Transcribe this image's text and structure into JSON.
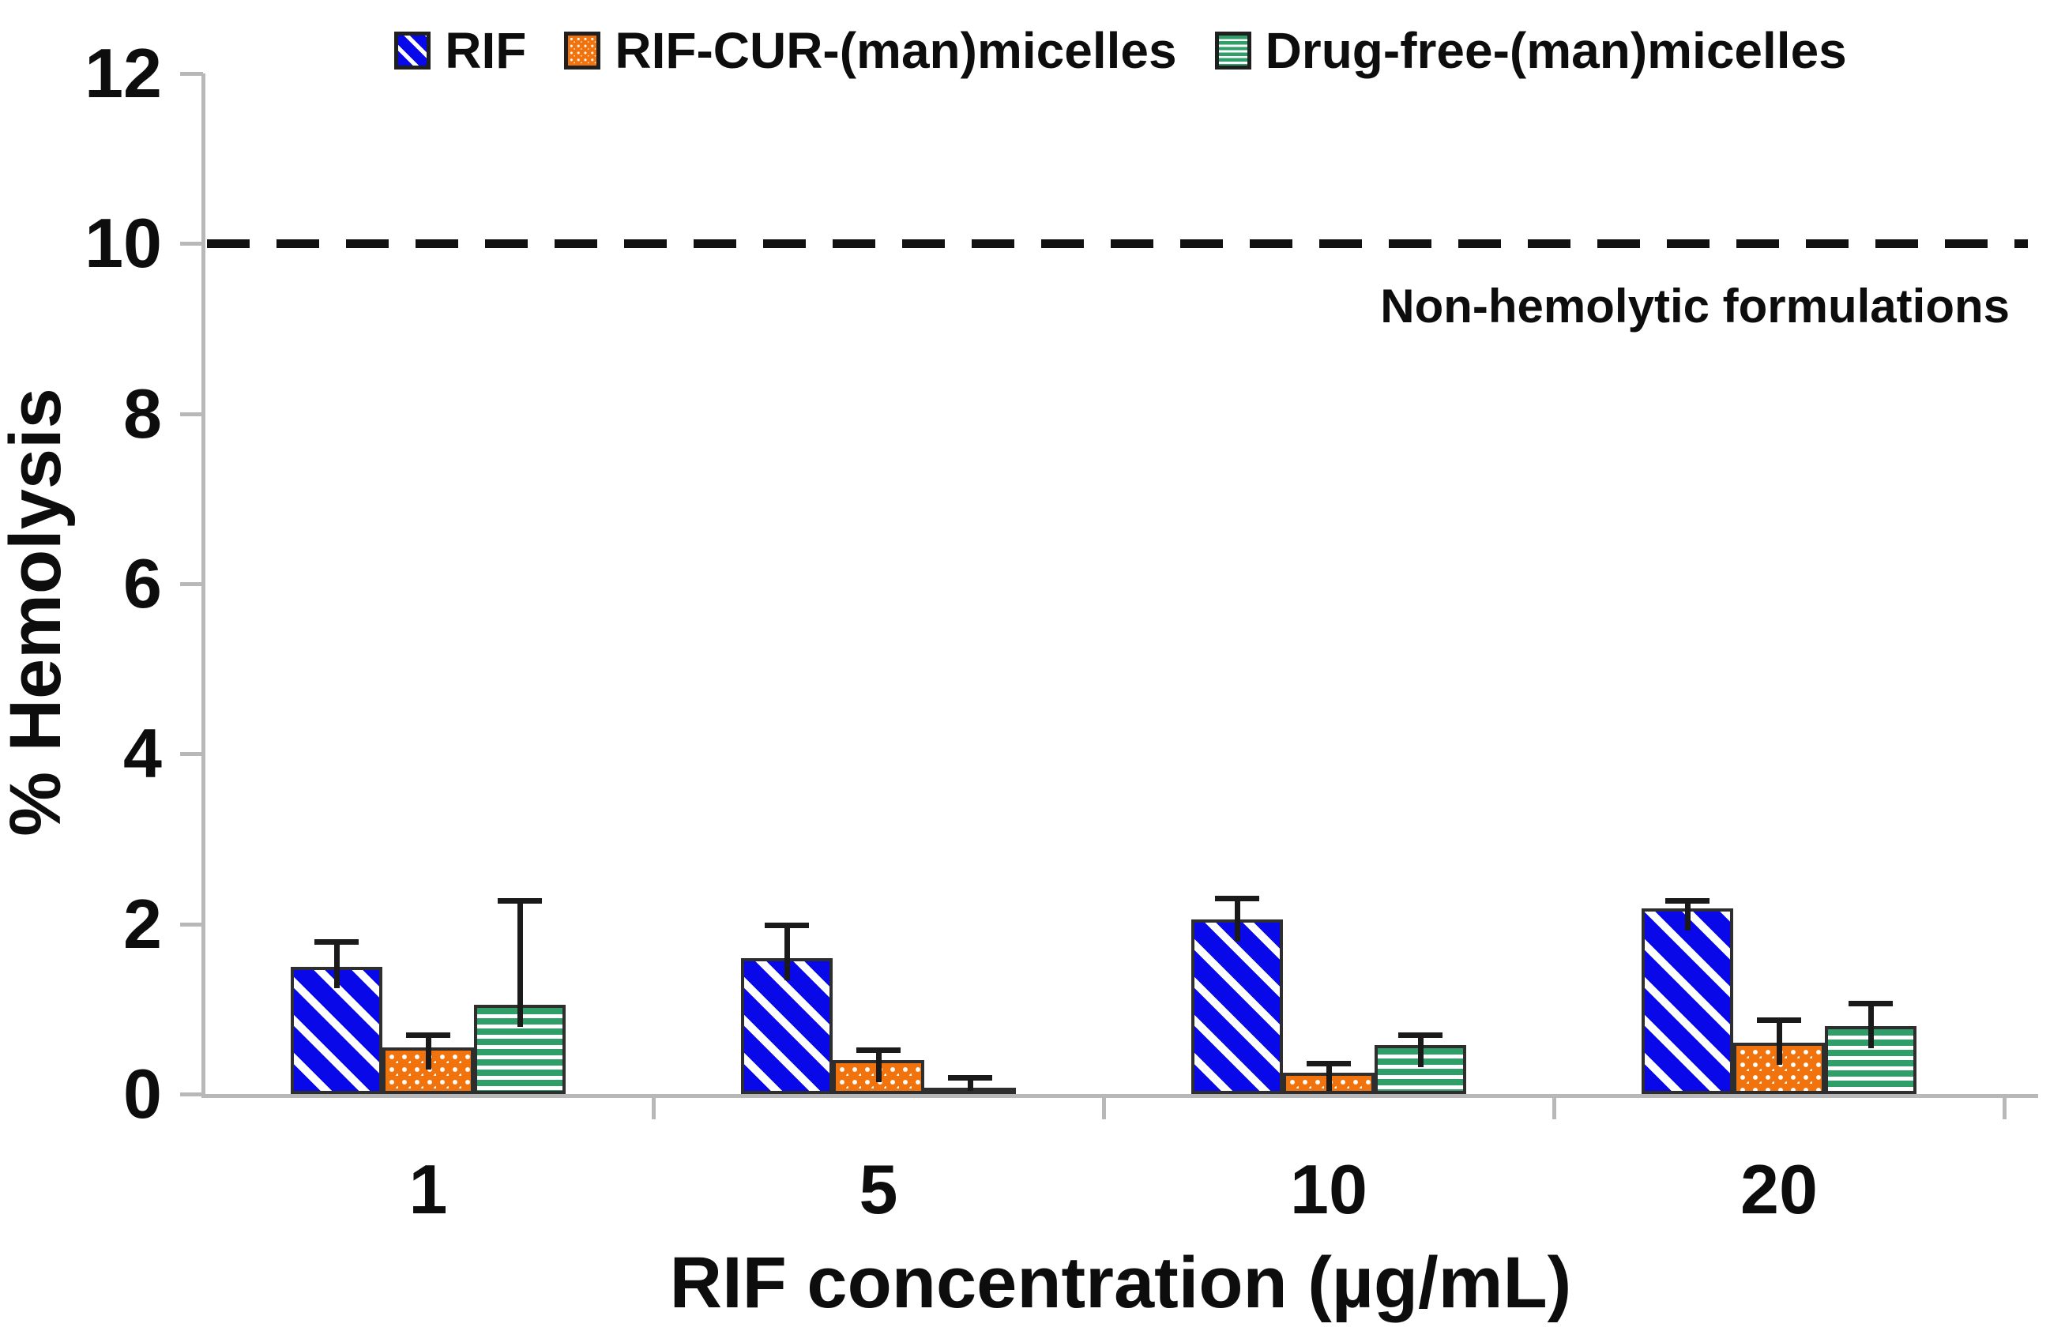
{
  "chart_data": {
    "type": "bar",
    "title": "",
    "categories": [
      "1",
      "5",
      "10",
      "20"
    ],
    "series": [
      {
        "name": "RIF",
        "color": "#0808e8",
        "pattern": "diagonal-stripes",
        "values": [
          1.5,
          1.6,
          2.05,
          2.18
        ],
        "errors_plus": [
          0.32,
          0.42,
          0.28,
          0.12
        ]
      },
      {
        "name": "RIF-CUR-(man)micelles",
        "color": "#f1730e",
        "pattern": "dots",
        "values": [
          0.55,
          0.4,
          0.25,
          0.6
        ],
        "errors_plus": [
          0.17,
          0.15,
          0.14,
          0.3
        ]
      },
      {
        "name": "Drug-free-(man)micelles",
        "color": "#2f9e68",
        "pattern": "horizontal-stripes",
        "values": [
          1.05,
          0.07,
          0.58,
          0.8
        ],
        "errors_plus": [
          1.25,
          0.15,
          0.14,
          0.3
        ]
      }
    ],
    "xlabel": "RIF concentration (µg/mL)",
    "ylabel": "% Hemolysis",
    "ylim": [
      0,
      12
    ],
    "yticks": [
      0,
      2,
      4,
      6,
      8,
      10,
      12
    ],
    "reference_line": {
      "value": 10,
      "style": "dashed",
      "color": "#111111",
      "label": "Non-hemolytic formulations"
    },
    "legend_position": "top",
    "grid": false
  },
  "colors": {
    "axis": "#b8b8b8",
    "error_bar": "#1a1a1a",
    "bar_border": "#2e2e2e",
    "text": "#0d0d0d",
    "background": "#ffffff"
  }
}
